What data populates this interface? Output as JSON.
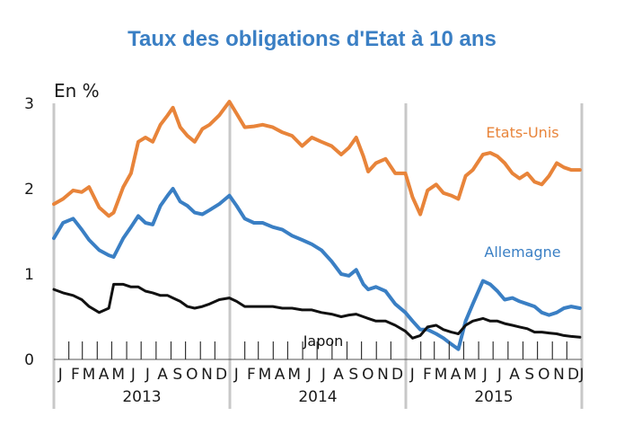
{
  "chart_data": {
    "type": "line",
    "title": "Taux des obligations d'Etat à 10 ans",
    "unit_label": "En %",
    "ylim": [
      0,
      3
    ],
    "y_ticks": [
      "0",
      "1",
      "2",
      "3"
    ],
    "x_range": [
      "2013-01-01",
      "2016-01-01"
    ],
    "month_labels": [
      "J",
      "F",
      "M",
      "A",
      "M",
      "J",
      "J",
      "A",
      "S",
      "O",
      "N",
      "D"
    ],
    "end_label": "J",
    "years": [
      "2013",
      "2014",
      "2015"
    ],
    "grid": "vertical lines at each year",
    "colors": {
      "us": "#e8843a",
      "de": "#3a7fc4",
      "jp": "#111111"
    },
    "series": [
      {
        "key": "us",
        "name": "Etats-Unis",
        "x": [
          "2013-01-01",
          "2013-01-20",
          "2013-02-10",
          "2013-02-28",
          "2013-03-15",
          "2013-04-05",
          "2013-04-25",
          "2013-05-05",
          "2013-05-25",
          "2013-06-10",
          "2013-06-25",
          "2013-07-10",
          "2013-07-25",
          "2013-08-10",
          "2013-08-25",
          "2013-09-05",
          "2013-09-20",
          "2013-10-05",
          "2013-10-20",
          "2013-11-05",
          "2013-11-20",
          "2013-12-10",
          "2013-12-31",
          "2014-01-15",
          "2014-02-01",
          "2014-02-20",
          "2014-03-10",
          "2014-03-31",
          "2014-04-20",
          "2014-05-10",
          "2014-05-31",
          "2014-06-20",
          "2014-07-10",
          "2014-07-31",
          "2014-08-20",
          "2014-09-05",
          "2014-09-20",
          "2014-10-05",
          "2014-10-15",
          "2014-10-31",
          "2014-11-20",
          "2014-12-10",
          "2014-12-31",
          "2015-01-15",
          "2015-01-31",
          "2015-02-15",
          "2015-03-05",
          "2015-03-20",
          "2015-04-05",
          "2015-04-20",
          "2015-05-05",
          "2015-05-20",
          "2015-06-10",
          "2015-06-25",
          "2015-07-10",
          "2015-07-25",
          "2015-08-10",
          "2015-08-25",
          "2015-09-10",
          "2015-09-25",
          "2015-10-10",
          "2015-10-25",
          "2015-11-10",
          "2015-11-25",
          "2015-12-10",
          "2015-12-28"
        ],
        "values": [
          1.82,
          1.88,
          1.98,
          1.96,
          2.02,
          1.78,
          1.68,
          1.72,
          2.02,
          2.18,
          2.55,
          2.6,
          2.55,
          2.75,
          2.86,
          2.95,
          2.72,
          2.62,
          2.55,
          2.7,
          2.75,
          2.86,
          3.02,
          2.88,
          2.72,
          2.73,
          2.75,
          2.72,
          2.66,
          2.62,
          2.5,
          2.6,
          2.55,
          2.5,
          2.4,
          2.48,
          2.6,
          2.38,
          2.2,
          2.3,
          2.35,
          2.18,
          2.18,
          1.9,
          1.7,
          1.98,
          2.05,
          1.95,
          1.92,
          1.88,
          2.15,
          2.22,
          2.4,
          2.42,
          2.38,
          2.3,
          2.18,
          2.12,
          2.18,
          2.08,
          2.05,
          2.15,
          2.3,
          2.25,
          2.22,
          2.22
        ]
      },
      {
        "key": "de",
        "name": "Allemagne",
        "x": [
          "2013-01-01",
          "2013-01-20",
          "2013-02-10",
          "2013-02-28",
          "2013-03-15",
          "2013-04-05",
          "2013-04-25",
          "2013-05-05",
          "2013-05-25",
          "2013-06-10",
          "2013-06-25",
          "2013-07-10",
          "2013-07-25",
          "2013-08-10",
          "2013-08-25",
          "2013-09-05",
          "2013-09-20",
          "2013-10-05",
          "2013-10-20",
          "2013-11-05",
          "2013-11-20",
          "2013-12-10",
          "2013-12-31",
          "2014-01-15",
          "2014-02-01",
          "2014-02-20",
          "2014-03-10",
          "2014-03-31",
          "2014-04-20",
          "2014-05-10",
          "2014-05-31",
          "2014-06-20",
          "2014-07-10",
          "2014-07-31",
          "2014-08-20",
          "2014-09-05",
          "2014-09-20",
          "2014-10-05",
          "2014-10-15",
          "2014-10-31",
          "2014-11-20",
          "2014-12-10",
          "2014-12-31",
          "2015-01-15",
          "2015-01-31",
          "2015-02-15",
          "2015-03-05",
          "2015-03-20",
          "2015-04-05",
          "2015-04-20",
          "2015-05-05",
          "2015-05-20",
          "2015-06-10",
          "2015-06-25",
          "2015-07-10",
          "2015-07-25",
          "2015-08-10",
          "2015-08-25",
          "2015-09-10",
          "2015-09-25",
          "2015-10-10",
          "2015-10-25",
          "2015-11-10",
          "2015-11-25",
          "2015-12-10",
          "2015-12-28"
        ],
        "values": [
          1.42,
          1.6,
          1.65,
          1.52,
          1.4,
          1.28,
          1.22,
          1.2,
          1.42,
          1.55,
          1.68,
          1.6,
          1.58,
          1.8,
          1.92,
          2.0,
          1.85,
          1.8,
          1.72,
          1.7,
          1.75,
          1.82,
          1.92,
          1.8,
          1.65,
          1.6,
          1.6,
          1.55,
          1.52,
          1.45,
          1.4,
          1.35,
          1.28,
          1.15,
          1.0,
          0.98,
          1.05,
          0.88,
          0.82,
          0.85,
          0.8,
          0.65,
          0.55,
          0.45,
          0.35,
          0.35,
          0.3,
          0.25,
          0.18,
          0.12,
          0.45,
          0.65,
          0.92,
          0.88,
          0.8,
          0.7,
          0.72,
          0.68,
          0.65,
          0.62,
          0.55,
          0.52,
          0.55,
          0.6,
          0.62,
          0.6
        ]
      },
      {
        "key": "jp",
        "name": "Japon",
        "x": [
          "2013-01-01",
          "2013-01-20",
          "2013-02-10",
          "2013-02-28",
          "2013-03-15",
          "2013-04-05",
          "2013-04-25",
          "2013-05-05",
          "2013-05-25",
          "2013-06-10",
          "2013-06-25",
          "2013-07-10",
          "2013-07-25",
          "2013-08-10",
          "2013-08-25",
          "2013-09-05",
          "2013-09-20",
          "2013-10-05",
          "2013-10-20",
          "2013-11-05",
          "2013-11-20",
          "2013-12-10",
          "2013-12-31",
          "2014-01-15",
          "2014-02-01",
          "2014-02-20",
          "2014-03-10",
          "2014-03-31",
          "2014-04-20",
          "2014-05-10",
          "2014-05-31",
          "2014-06-20",
          "2014-07-10",
          "2014-07-31",
          "2014-08-20",
          "2014-09-05",
          "2014-09-20",
          "2014-10-05",
          "2014-10-15",
          "2014-10-31",
          "2014-11-20",
          "2014-12-10",
          "2014-12-31",
          "2015-01-15",
          "2015-01-31",
          "2015-02-15",
          "2015-03-05",
          "2015-03-20",
          "2015-04-05",
          "2015-04-20",
          "2015-05-05",
          "2015-05-20",
          "2015-06-10",
          "2015-06-25",
          "2015-07-10",
          "2015-07-25",
          "2015-08-10",
          "2015-08-25",
          "2015-09-10",
          "2015-09-25",
          "2015-10-10",
          "2015-10-25",
          "2015-11-10",
          "2015-11-25",
          "2015-12-10",
          "2015-12-28"
        ],
        "values": [
          0.82,
          0.78,
          0.75,
          0.7,
          0.62,
          0.55,
          0.6,
          0.88,
          0.88,
          0.85,
          0.85,
          0.8,
          0.78,
          0.75,
          0.75,
          0.72,
          0.68,
          0.62,
          0.6,
          0.62,
          0.65,
          0.7,
          0.72,
          0.68,
          0.62,
          0.62,
          0.62,
          0.62,
          0.6,
          0.6,
          0.58,
          0.58,
          0.55,
          0.53,
          0.5,
          0.52,
          0.53,
          0.5,
          0.48,
          0.45,
          0.45,
          0.4,
          0.33,
          0.25,
          0.28,
          0.38,
          0.4,
          0.35,
          0.32,
          0.3,
          0.4,
          0.45,
          0.48,
          0.45,
          0.45,
          0.42,
          0.4,
          0.38,
          0.36,
          0.32,
          0.32,
          0.31,
          0.3,
          0.28,
          0.27,
          0.26
        ]
      }
    ]
  }
}
